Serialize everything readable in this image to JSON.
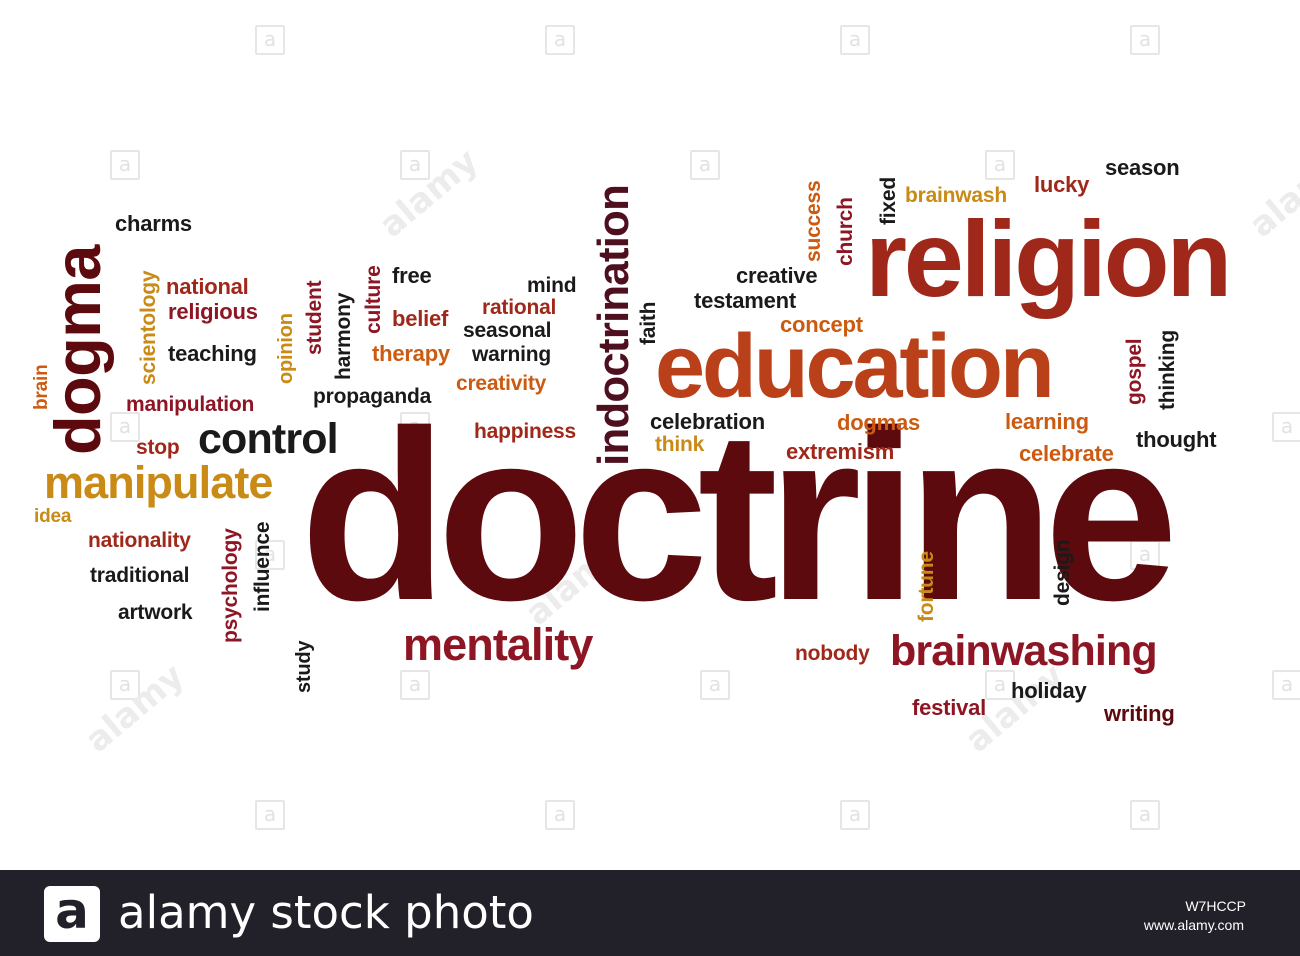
{
  "colors": {
    "dark": "#5c0a0e",
    "red": "#a0281a",
    "orange": "#cc5a10",
    "gold": "#c98a16",
    "black": "#1a1a1a",
    "crimson": "#8e1624",
    "footer_bg": "#222129"
  },
  "words": {
    "doctrine": "doctrine",
    "religion": "religion",
    "education": "education",
    "dogma": "dogma",
    "manipulate": "manipulate",
    "control": "control",
    "mentality": "mentality",
    "brainwashing": "brainwashing",
    "indoctrination": "indoctrination",
    "charms": "charms",
    "scientology": "scientology",
    "national": "national",
    "religious": "religious",
    "teaching": "teaching",
    "brain": "brain",
    "manipulation": "manipulation",
    "stop": "stop",
    "idea": "idea",
    "nationality": "nationality",
    "traditional": "traditional",
    "artwork": "artwork",
    "psychology": "psychology",
    "influence": "influence",
    "study": "study",
    "opinion": "opinion",
    "student": "student",
    "harmony": "harmony",
    "culture": "culture",
    "free": "free",
    "belief": "belief",
    "therapy": "therapy",
    "propaganda": "propaganda",
    "mind": "mind",
    "rational": "rational",
    "seasonal": "seasonal",
    "warning": "warning",
    "creativity": "creativity",
    "happiness": "happiness",
    "faith": "faith",
    "creative": "creative",
    "testament": "testament",
    "concept": "concept",
    "success": "success",
    "church": "church",
    "fixed": "fixed",
    "brainwash": "brainwash",
    "lucky": "lucky",
    "season": "season",
    "gospel": "gospel",
    "thinking": "thinking",
    "celebration": "celebration",
    "think": "think",
    "dogmas": "dogmas",
    "learning": "learning",
    "extremism": "extremism",
    "celebrate": "celebrate",
    "thought": "thought",
    "fortune": "fortune",
    "design": "design",
    "nobody": "nobody",
    "holiday": "holiday",
    "festival": "festival",
    "writing": "writing"
  },
  "watermark": {
    "glyph": "a",
    "text": "alamy"
  },
  "footer": {
    "logo": "a",
    "brand": "alamy stock photo",
    "id": "W7HCCP",
    "url": "www.alamy.com"
  }
}
